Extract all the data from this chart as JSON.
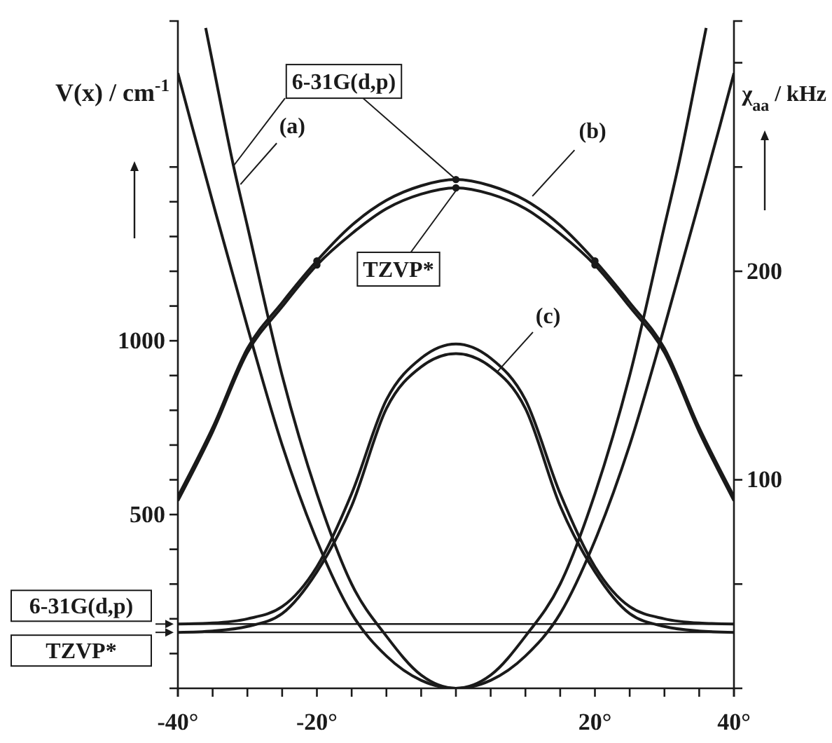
{
  "chart_data": {
    "type": "line",
    "ylabel": "V(x) / cm$^{-1}$",
    "y2label": "χ$_{aa}$ / kHz",
    "xlim": [
      -40,
      40
    ],
    "ylim": [
      0,
      1920
    ],
    "y2lim": [
      0,
      320
    ],
    "xticks": [
      {
        "value": -40,
        "label": "-40°"
      },
      {
        "value": -35,
        "label": null
      },
      {
        "value": -30,
        "label": null
      },
      {
        "value": -25,
        "label": null
      },
      {
        "value": -20,
        "label": "-20°"
      },
      {
        "value": -15,
        "label": null
      },
      {
        "value": -10,
        "label": null
      },
      {
        "value": -5,
        "label": null
      },
      {
        "value": 0,
        "label": null
      },
      {
        "value": 5,
        "label": null
      },
      {
        "value": 10,
        "label": null
      },
      {
        "value": 15,
        "label": null
      },
      {
        "value": 20,
        "label": "20°"
      },
      {
        "value": 25,
        "label": null
      },
      {
        "value": 30,
        "label": null
      },
      {
        "value": 35,
        "label": null
      },
      {
        "value": 40,
        "label": "40°"
      }
    ],
    "yticks": [
      {
        "value": 100,
        "label": null
      },
      {
        "value": 200,
        "label": null
      },
      {
        "value": 300,
        "label": null
      },
      {
        "value": 400,
        "label": null
      },
      500,
      {
        "value": 600,
        "label": null
      },
      {
        "value": 700,
        "label": null
      },
      {
        "value": 800,
        "label": null
      },
      {
        "value": 900,
        "label": null
      },
      1000,
      {
        "value": 1100,
        "label": null
      },
      {
        "value": 1200,
        "label": null
      },
      {
        "value": 1300,
        "label": null
      },
      {
        "value": 1400,
        "label": null
      },
      {
        "value": 1500,
        "label": null
      }
    ],
    "y2ticks": [
      {
        "value": 50,
        "label": null
      },
      100,
      {
        "value": 150,
        "label": null
      },
      200,
      {
        "value": 250,
        "label": null
      },
      {
        "value": 300,
        "label": null
      }
    ],
    "series": [
      {
        "color": "#1a1a1a",
        "x": [
          -36,
          -35,
          -32,
          -30,
          -25,
          -20,
          -15,
          -10,
          -5,
          0,
          5,
          10,
          15,
          20,
          25,
          30,
          32,
          35,
          36
        ],
        "values": [
          1900,
          1800,
          1503,
          1330,
          900,
          560,
          300,
          150,
          38,
          0,
          38,
          150,
          300,
          560,
          900,
          1330,
          1503,
          1800,
          1900
        ]
      },
      {
        "color": "#1a1a1a",
        "x": [
          -40,
          -38,
          -35,
          -30,
          -25,
          -20,
          -15,
          -10,
          -5,
          0,
          5,
          10,
          15,
          20,
          25,
          30,
          35,
          38,
          40
        ],
        "values": [
          1770,
          1620,
          1400,
          1040,
          700,
          425,
          215,
          93,
          23,
          0,
          23,
          93,
          215,
          425,
          700,
          1040,
          1400,
          1620,
          1770
        ]
      },
      {
        "color": "#1a1a1a",
        "axis": "y2",
        "x": [
          -40,
          -35,
          -30,
          -25,
          -20,
          -15,
          -10,
          -5,
          0,
          5,
          10,
          15,
          20,
          25,
          30,
          35,
          40
        ],
        "values": [
          92,
          125,
          163,
          185,
          205,
          222,
          234,
          241,
          244,
          241,
          234,
          222,
          205,
          185,
          163,
          125,
          92
        ]
      },
      {
        "color": "#1a1a1a",
        "axis": "y2",
        "x": [
          -40,
          -35,
          -30,
          -25,
          -20,
          -15,
          -10,
          -5,
          0,
          5,
          10,
          15,
          20,
          25,
          30,
          35,
          40
        ],
        "values": [
          90,
          123,
          161,
          183,
          203,
          218,
          230,
          237,
          240,
          237,
          230,
          218,
          203,
          183,
          161,
          123,
          90
        ]
      },
      {
        "color": "#1a1a1a",
        "x": [
          -40,
          -35,
          -30,
          -25,
          -20,
          -15,
          -10,
          -5,
          0,
          5,
          10,
          15,
          20,
          25,
          30,
          35,
          40
        ],
        "values": [
          185,
          188,
          200,
          235,
          350,
          560,
          830,
          950,
          991,
          950,
          830,
          560,
          350,
          235,
          200,
          188,
          185
        ]
      },
      {
        "color": "#1a1a1a",
        "x": [
          -40,
          -35,
          -30,
          -25,
          -20,
          -15,
          -10,
          -5,
          0,
          5,
          10,
          15,
          20,
          25,
          30,
          35,
          40
        ],
        "values": [
          161,
          165,
          178,
          215,
          335,
          525,
          805,
          925,
          963,
          925,
          805,
          525,
          335,
          215,
          178,
          165,
          161
        ]
      },
      {
        "type": "scatter",
        "color": "#1a1a1a",
        "axis": "y2",
        "x": [
          -20,
          0,
          20
        ],
        "values": [
          205,
          244,
          205
        ]
      },
      {
        "type": "scatter",
        "color": "#1a1a1a",
        "axis": "y2",
        "x": [
          -20,
          0,
          20
        ],
        "values": [
          203,
          240,
          203
        ]
      }
    ],
    "ref_lines": [
      {
        "axis": "y",
        "value": 185,
        "label": "6-31G(d,p)",
        "color": "#1a1a1a"
      },
      {
        "axis": "y",
        "value": 161,
        "label": "TZVP*",
        "color": "#1a1a1a"
      }
    ],
    "annotations": [
      {
        "text": "(a)",
        "x": -31,
        "y": 1450
      },
      {
        "text": "(b)",
        "x": 11,
        "y": 1416
      },
      {
        "text": "(c)",
        "x": 6,
        "y": 912
      },
      {
        "text": "6-31G(d,p)",
        "x": 0,
        "y": 1464
      },
      {
        "text": "TZVP*",
        "x": 0,
        "y": 1432
      }
    ]
  }
}
